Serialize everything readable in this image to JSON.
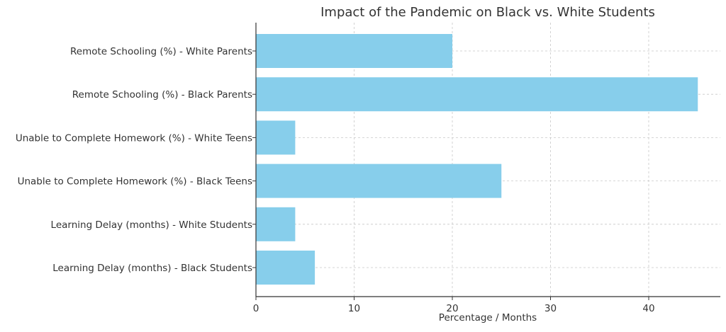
{
  "chart_data": {
    "type": "bar",
    "orientation": "horizontal",
    "title": "Impact of the Pandemic on Black vs. White Students",
    "xlabel": "Percentage / Months",
    "ylabel": "",
    "categories": [
      "Remote Schooling (%) - White Parents",
      "Remote Schooling (%) - Black Parents",
      "Unable to Complete Homework (%) - White Teens",
      "Unable to Complete Homework (%) - Black Teens",
      "Learning Delay (months) - White Students",
      "Learning Delay (months) - Black Students"
    ],
    "values": [
      20,
      45,
      4,
      25,
      4,
      6
    ],
    "xlim": [
      0,
      47.25
    ],
    "xticks": [
      0,
      10,
      20,
      30,
      40
    ],
    "grid": true,
    "bar_color": "#87CEEB"
  }
}
